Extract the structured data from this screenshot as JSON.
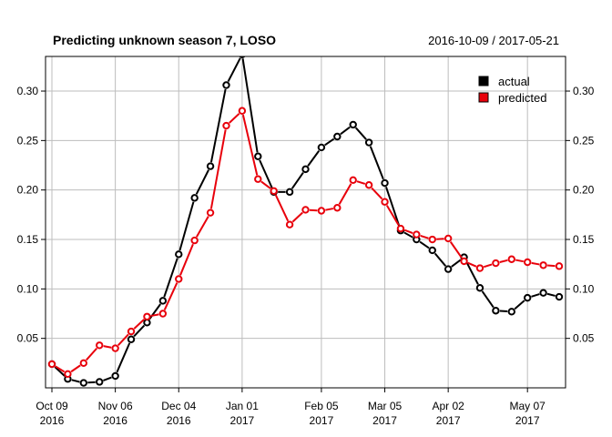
{
  "chart_data": {
    "type": "line",
    "title": "Predicting unknown season 7, LOSO",
    "subtitle": "2016-10-09 / 2017-05-21",
    "x_tick_labels": [
      {
        "line1": "Oct 09",
        "line2": "2016",
        "x": "2016-10-09"
      },
      {
        "line1": "Nov 06",
        "line2": "2016",
        "x": "2016-11-06"
      },
      {
        "line1": "Dec 04",
        "line2": "2016",
        "x": "2016-12-04"
      },
      {
        "line1": "Jan 01",
        "line2": "2017",
        "x": "2017-01-01"
      },
      {
        "line1": "Feb 05",
        "line2": "2017",
        "x": "2017-02-05"
      },
      {
        "line1": "Mar 05",
        "line2": "2017",
        "x": "2017-03-05"
      },
      {
        "line1": "Apr 02",
        "line2": "2017",
        "x": "2017-04-02"
      },
      {
        "line1": "May 07",
        "line2": "2017",
        "x": "2017-05-07"
      }
    ],
    "y_ticks": [
      "0.05",
      "0.10",
      "0.15",
      "0.20",
      "0.25",
      "0.30"
    ],
    "xlim": [
      "2016-10-09",
      "2017-05-21"
    ],
    "ylim": [
      0.0,
      0.335
    ],
    "grid": true,
    "legend_position": "top-right",
    "x": [
      "2016-10-09",
      "2016-10-16",
      "2016-10-23",
      "2016-10-30",
      "2016-11-06",
      "2016-11-13",
      "2016-11-20",
      "2016-11-27",
      "2016-12-04",
      "2016-12-11",
      "2016-12-18",
      "2016-12-25",
      "2017-01-01",
      "2017-01-08",
      "2017-01-15",
      "2017-01-22",
      "2017-01-29",
      "2017-02-05",
      "2017-02-12",
      "2017-02-19",
      "2017-02-26",
      "2017-03-05",
      "2017-03-12",
      "2017-03-19",
      "2017-03-26",
      "2017-04-02",
      "2017-04-09",
      "2017-04-16",
      "2017-04-23",
      "2017-04-30",
      "2017-05-07",
      "2017-05-14",
      "2017-05-21"
    ],
    "series": [
      {
        "name": "actual",
        "color": "#000000",
        "values": [
          0.024,
          0.009,
          0.005,
          0.006,
          0.012,
          0.049,
          0.066,
          0.088,
          0.135,
          0.192,
          0.224,
          0.306,
          0.337,
          0.234,
          0.198,
          0.198,
          0.221,
          0.243,
          0.254,
          0.266,
          0.248,
          0.207,
          0.159,
          0.15,
          0.139,
          0.12,
          0.132,
          0.101,
          0.078,
          0.077,
          0.091,
          0.096,
          0.092
        ]
      },
      {
        "name": "predicted",
        "color": "#e8000b",
        "values": [
          0.024,
          0.014,
          0.025,
          0.043,
          0.04,
          0.057,
          0.072,
          0.075,
          0.11,
          0.149,
          0.177,
          0.265,
          0.28,
          0.211,
          0.199,
          0.165,
          0.18,
          0.179,
          0.182,
          0.21,
          0.205,
          0.188,
          0.161,
          0.155,
          0.15,
          0.151,
          0.128,
          0.121,
          0.126,
          0.13,
          0.127,
          0.124,
          0.123
        ]
      }
    ]
  }
}
